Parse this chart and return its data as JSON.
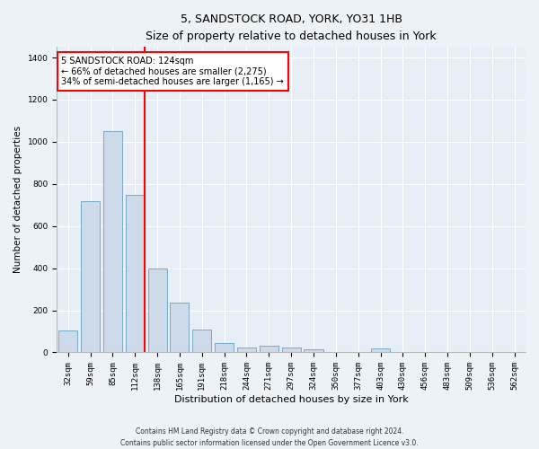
{
  "title": "5, SANDSTOCK ROAD, YORK, YO31 1HB",
  "subtitle": "Size of property relative to detached houses in York",
  "xlabel": "Distribution of detached houses by size in York",
  "ylabel": "Number of detached properties",
  "categories": [
    "32sqm",
    "59sqm",
    "85sqm",
    "112sqm",
    "138sqm",
    "165sqm",
    "191sqm",
    "218sqm",
    "244sqm",
    "271sqm",
    "297sqm",
    "324sqm",
    "350sqm",
    "377sqm",
    "403sqm",
    "430sqm",
    "456sqm",
    "483sqm",
    "509sqm",
    "536sqm",
    "562sqm"
  ],
  "values": [
    105,
    720,
    1050,
    750,
    400,
    235,
    110,
    45,
    25,
    30,
    25,
    15,
    0,
    0,
    20,
    0,
    0,
    0,
    0,
    0,
    0
  ],
  "bar_color": "#ccdaea",
  "bar_edge_color": "#7aaac8",
  "vline_color": "red",
  "vline_x": 3.42,
  "annotation_line1": "5 SANDSTOCK ROAD: 124sqm",
  "annotation_line2": "← 66% of detached houses are smaller (2,275)",
  "annotation_line3": "34% of semi-detached houses are larger (1,165) →",
  "annotation_box_facecolor": "white",
  "annotation_box_edgecolor": "red",
  "ylim": [
    0,
    1450
  ],
  "yticks": [
    0,
    200,
    400,
    600,
    800,
    1000,
    1200,
    1400
  ],
  "footnote1": "Contains HM Land Registry data © Crown copyright and database right 2024.",
  "footnote2": "Contains public sector information licensed under the Open Government Licence v3.0.",
  "fig_bg_color": "#edf2f7",
  "plot_bg_color": "#e8eef5",
  "title_fontsize": 9,
  "subtitle_fontsize": 8,
  "ylabel_fontsize": 7.5,
  "xlabel_fontsize": 8,
  "tick_fontsize": 6.5,
  "annot_fontsize": 7,
  "footnote_fontsize": 5.5
}
